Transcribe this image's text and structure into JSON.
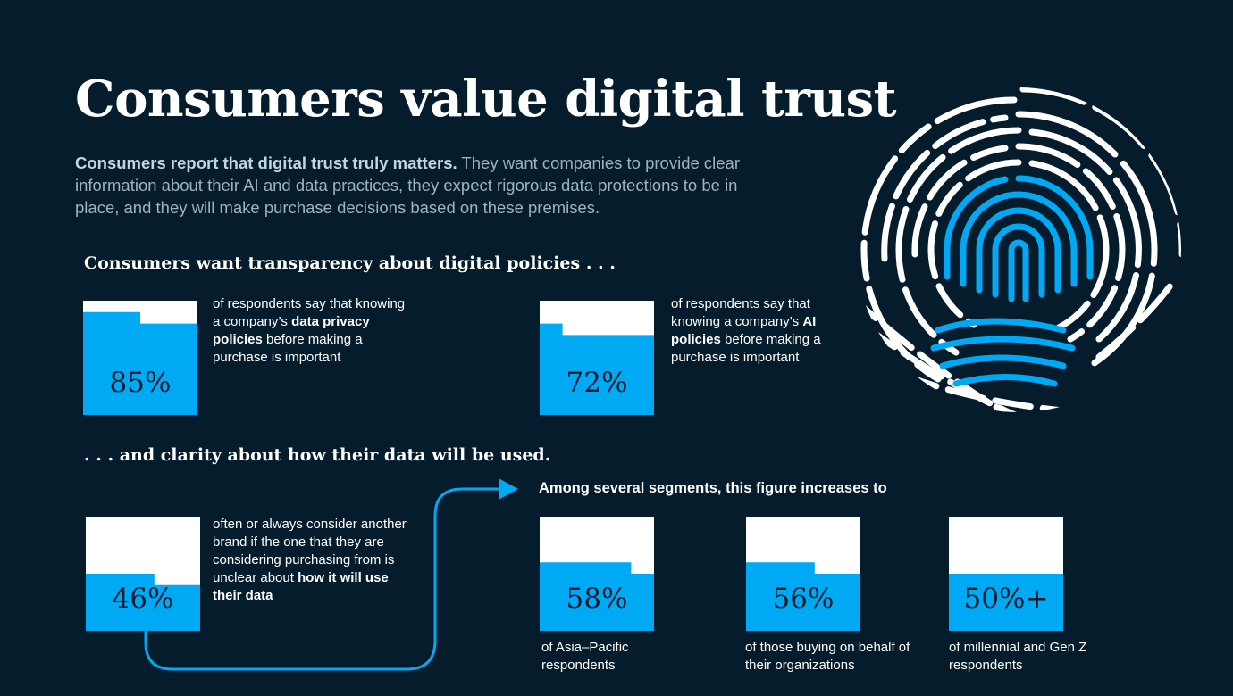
{
  "title": "Consumers value digital trust",
  "intro": {
    "lead": "Consumers report that digital trust truly matters.",
    "rest": " They want companies to provide clear information about their AI and data practices, they expect rigorous data protections to be in place, and they will make purchase decisions based on these premises."
  },
  "section1": {
    "heading": "Consumers want transparency about digital policies . . .",
    "stats": [
      {
        "value": "85%",
        "fill_fraction": 0.85,
        "text_before": "of respondents say that knowing a company’s ",
        "text_bold": "data privacy policies",
        "text_after": " before making a purchase is important"
      },
      {
        "value": "72%",
        "fill_fraction": 0.72,
        "text_before": "of respondents say that knowing a company’s ",
        "text_bold": "AI policies",
        "text_after": " before making a purchase is important"
      }
    ]
  },
  "section2": {
    "heading": ". . . and clarity about how their data will be used.",
    "stat": {
      "value": "46%",
      "fill_fraction": 0.46,
      "text_before": "often or always consider another brand if the one that they are considering purchasing from is unclear about ",
      "text_bold": "how it will use their data",
      "text_after": ""
    },
    "segments_heading": "Among several segments, this figure increases to",
    "segments": [
      {
        "value": "58%",
        "fill_fraction": 0.58,
        "caption": "of Asia–Pacific respondents"
      },
      {
        "value": "56%",
        "fill_fraction": 0.56,
        "caption": "of those buying on behalf of their organizations"
      },
      {
        "value": "50%+",
        "fill_fraction": 0.5,
        "caption": "of millennial and Gen Z respondents"
      }
    ]
  },
  "colors": {
    "background": "#051c2c",
    "accent": "#00a9f4",
    "box": "#ffffff",
    "intro_text": "#9fb2c2"
  },
  "icons": {
    "fingerprint": "fingerprint-icon",
    "arrow": "arrow-connector-icon"
  }
}
